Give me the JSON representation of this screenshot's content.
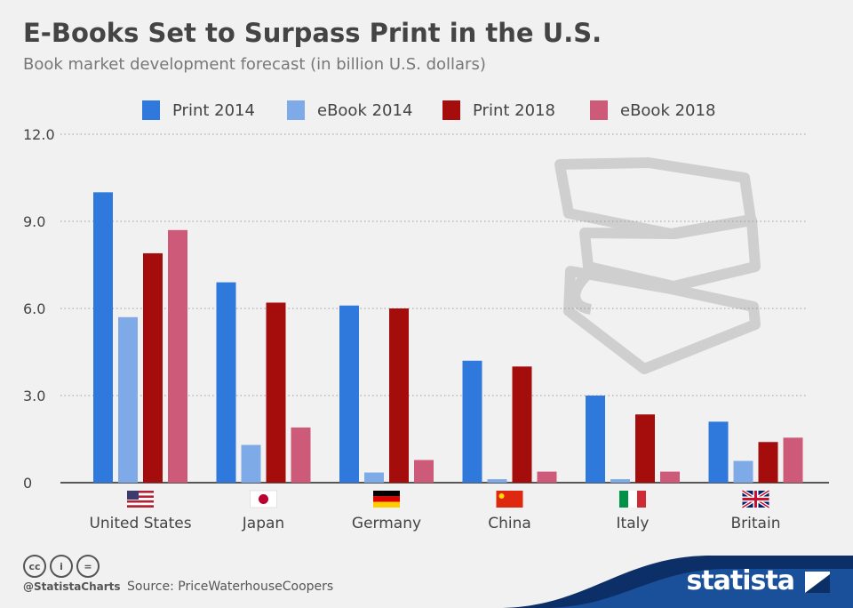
{
  "header": {
    "title": "E-Books Set to Surpass Print in the U.S.",
    "subtitle": "Book market development forecast (in billion U.S. dollars)"
  },
  "footer": {
    "handle": "@StatistaCharts",
    "source": "Source: PriceWaterhouseCoopers",
    "brand": "statista"
  },
  "chart_data": {
    "type": "bar",
    "title": "E-Books Set to Surpass Print in the U.S.",
    "subtitle": "Book market development forecast (in billion U.S. dollars)",
    "categories": [
      "United States",
      "Japan",
      "Germany",
      "China",
      "Italy",
      "Britain"
    ],
    "series": [
      {
        "name": "Print 2014",
        "color": "#2f78dc",
        "values": [
          10.0,
          6.9,
          6.1,
          4.2,
          3.0,
          2.1
        ]
      },
      {
        "name": "eBook 2014",
        "color": "#7faae8",
        "values": [
          5.7,
          1.3,
          0.35,
          0.12,
          0.12,
          0.75
        ]
      },
      {
        "name": "Print 2018",
        "color": "#a50d0d",
        "values": [
          7.9,
          6.2,
          6.0,
          4.0,
          2.35,
          1.4
        ]
      },
      {
        "name": "eBook 2018",
        "color": "#cd5a78",
        "values": [
          8.7,
          1.9,
          0.78,
          0.38,
          0.38,
          1.55
        ]
      }
    ],
    "y_ticks": [
      "12.0",
      "9.0",
      "6.0",
      "3.0",
      "0"
    ],
    "ylim": [
      0,
      12
    ],
    "grid": true,
    "legend_position": "top",
    "flags": [
      "us-flag",
      "japan-flag",
      "germany-flag",
      "china-flag",
      "italy-flag",
      "britain-flag"
    ],
    "decoration": "stack-of-books-illustration"
  }
}
